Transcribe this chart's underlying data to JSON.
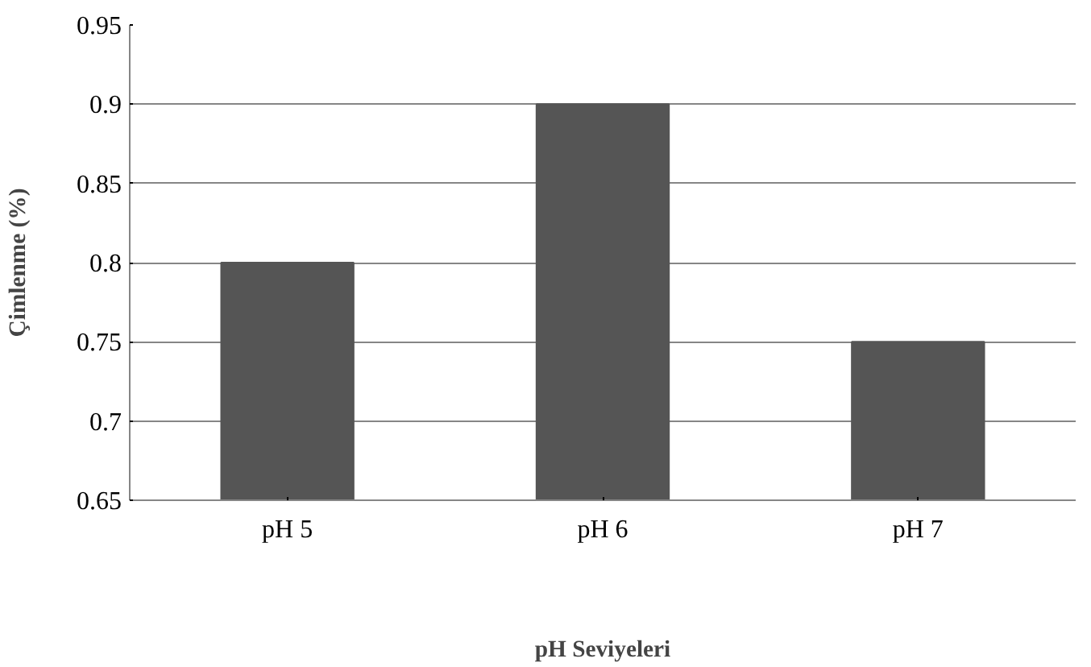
{
  "chart_data": {
    "type": "bar",
    "categories": [
      "pH 5",
      "pH 6",
      "pH 7"
    ],
    "values": [
      0.8,
      0.9,
      0.75
    ],
    "color": "#555555",
    "xlabel": "pH Seviyeleri",
    "ylabel": "Çimlenme (%)",
    "ylim": [
      0.65,
      0.95
    ],
    "yticks": [
      0.65,
      0.7,
      0.75,
      0.8,
      0.85,
      0.9,
      0.95
    ],
    "grid": "y"
  }
}
